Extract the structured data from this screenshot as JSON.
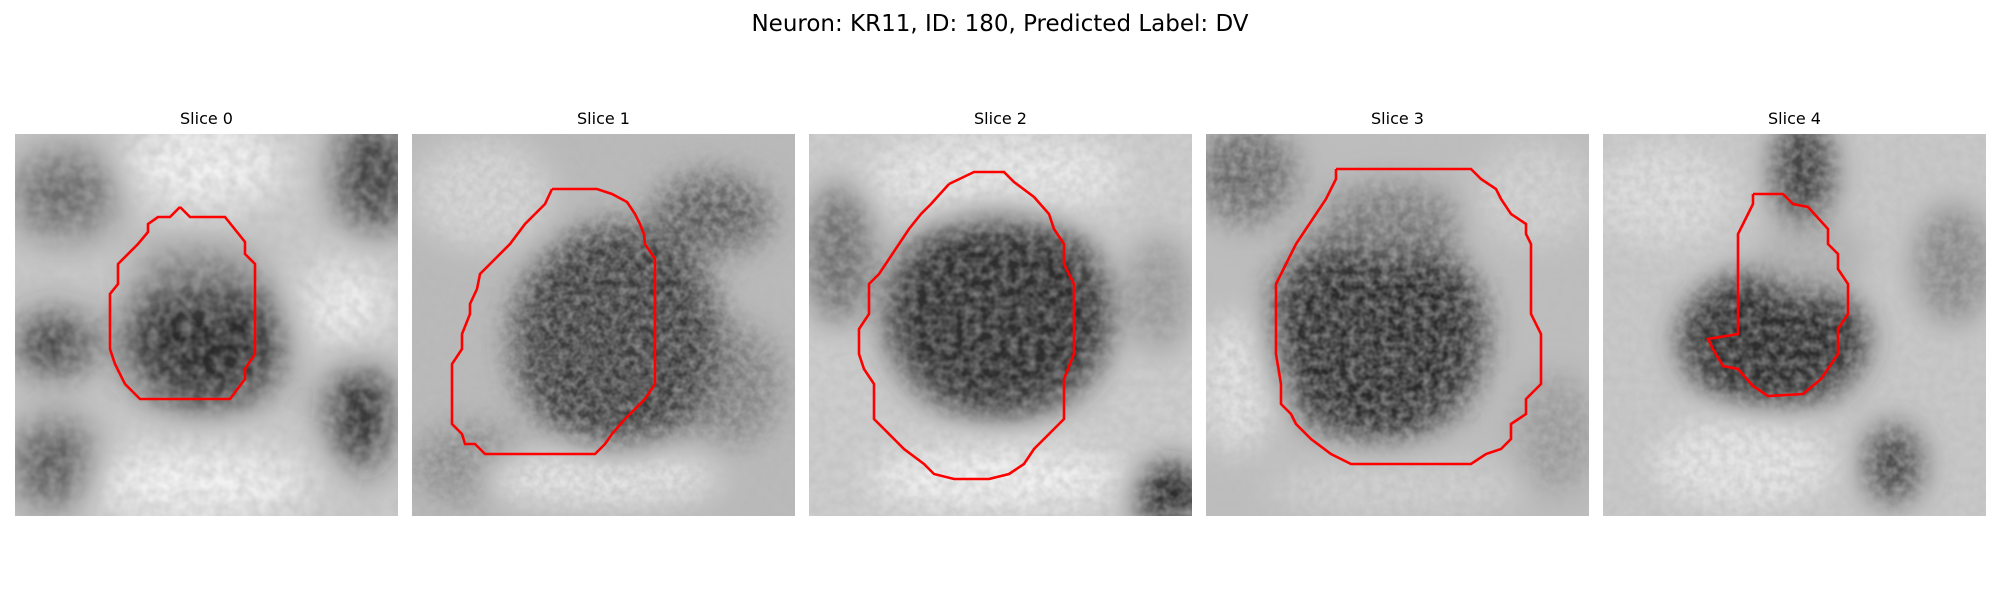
{
  "figure": {
    "title": "Neuron: KR11, ID: 180, Predicted Label: DV"
  },
  "colors": {
    "contour": "#ff0000",
    "background": "#ffffff"
  },
  "slices": [
    {
      "title": "Slice 0"
    },
    {
      "title": "Slice 1"
    },
    {
      "title": "Slice 2"
    },
    {
      "title": "Slice 3"
    },
    {
      "title": "Slice 4"
    }
  ]
}
